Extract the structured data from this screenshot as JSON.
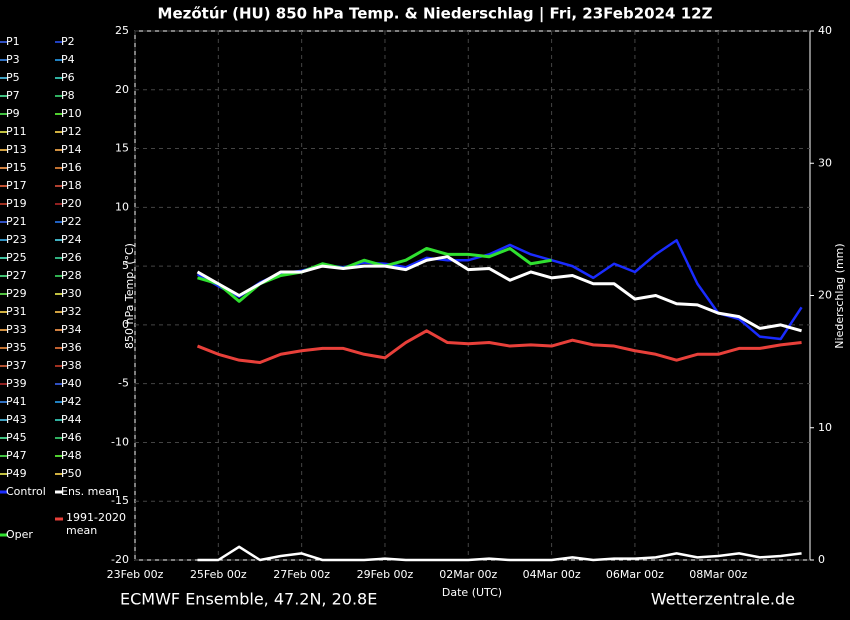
{
  "chart_data": {
    "type": "line",
    "title": "Mezőtúr  (HU)  850 hPa Temp. & Niederschlag | Fri, 23Feb2024 12Z",
    "x_label": "Date (UTC)",
    "y_label": "850 hPa Temp. (°C)",
    "y2_label": "Niederschlag (mm)",
    "footer_left": "ECMWF Ensemble, 47.2N, 20.8E",
    "footer_right": "Wetterzentrale.de",
    "x": [
      "23Feb 00z",
      null,
      null,
      null,
      "25Feb 00z",
      null,
      null,
      null,
      "27Feb 00z",
      null,
      null,
      null,
      "29Feb 00z",
      null,
      null,
      null,
      "02Mar 00z",
      null,
      null,
      null,
      "04Mar 00z",
      null,
      null,
      null,
      "06Mar 00z",
      null,
      null,
      null,
      "08Mar 00z",
      null,
      null,
      null,
      null
    ],
    "ylim": [
      -20,
      25
    ],
    "yticks": [
      -20,
      -15,
      -10,
      -5,
      0,
      5,
      10,
      15,
      20,
      25
    ],
    "y2lim": [
      0,
      40
    ],
    "y2ticks": [
      0,
      10,
      20,
      30,
      40
    ],
    "grid": true,
    "series": [
      {
        "name": "Control",
        "color": "#1a2cff",
        "width": 2.5,
        "values": [
          null,
          null,
          null,
          4.3,
          3.3,
          2.4,
          3.6,
          4.4,
          4.6,
          5.1,
          4.9,
          5.3,
          5.2,
          4.9,
          5.7,
          5.5,
          5.5,
          6,
          6.8,
          6,
          5.5,
          5,
          4,
          5.2,
          4.5,
          6,
          7.2,
          3.5,
          1,
          0.5,
          -1,
          -1.2,
          1.5
        ]
      },
      {
        "name": "1991-2020\nmean",
        "color": "#e8403a",
        "width": 3,
        "values": [
          null,
          null,
          null,
          -1.8,
          -2.5,
          -3,
          -3.2,
          -2.5,
          -2.2,
          -2,
          -2,
          -2.5,
          -2.8,
          -1.5,
          -0.5,
          -1.5,
          -1.6,
          -1.5,
          -1.8,
          -1.7,
          -1.8,
          -1.3,
          -1.7,
          -1.8,
          -2.2,
          -2.5,
          -3,
          -2.5,
          -2.5,
          -2,
          -2,
          -1.7,
          -1.5
        ]
      },
      {
        "name": "Oper",
        "color": "#30e030",
        "width": 3,
        "values": [
          null,
          null,
          null,
          4,
          3.5,
          2,
          3.5,
          4.2,
          4.5,
          5.2,
          4.8,
          5.5,
          5,
          5.5,
          6.5,
          6,
          6,
          5.8,
          6.5,
          5.2,
          5.5,
          null,
          null,
          null,
          null,
          null,
          null,
          null,
          null,
          null,
          null,
          null,
          null
        ]
      },
      {
        "name": "Ens. mean",
        "color": "#ffffff",
        "width": 3,
        "values": [
          null,
          null,
          null,
          4.5,
          3.5,
          2.5,
          3.5,
          4.5,
          4.5,
          5,
          4.8,
          5,
          5,
          4.7,
          5.5,
          5.8,
          4.7,
          4.8,
          3.8,
          4.5,
          4,
          4.2,
          3.5,
          3.5,
          2.2,
          2.5,
          1.8,
          1.7,
          1,
          0.7,
          -0.3,
          0,
          -0.5
        ]
      },
      {
        "name": "Ens. mean",
        "color": "#ffffff",
        "width": 2.5,
        "axis": "y2",
        "values": [
          null,
          null,
          null,
          0,
          0,
          1,
          0,
          0.3,
          0.5,
          0,
          0,
          0,
          0.1,
          0,
          0,
          0,
          0,
          0.1,
          0,
          0,
          0,
          0.2,
          0,
          0.1,
          0.1,
          0.2,
          0.5,
          0.2,
          0.3,
          0.5,
          0.2,
          0.3,
          0.5
        ]
      }
    ],
    "members": [
      {
        "name": "P1",
        "color": "#3050c0"
      },
      {
        "name": "P2",
        "color": "#2040c0"
      },
      {
        "name": "P3",
        "color": "#3070c0"
      },
      {
        "name": "P4",
        "color": "#2080c0"
      },
      {
        "name": "P5",
        "color": "#40a0c0"
      },
      {
        "name": "P6",
        "color": "#30b0a0"
      },
      {
        "name": "P7",
        "color": "#40c080"
      },
      {
        "name": "P8",
        "color": "#30b060"
      },
      {
        "name": "P9",
        "color": "#40c040"
      },
      {
        "name": "P10",
        "color": "#50d030"
      },
      {
        "name": "P11",
        "color": "#c0c040"
      },
      {
        "name": "P12",
        "color": "#d0b040"
      },
      {
        "name": "P13",
        "color": "#d0a040"
      },
      {
        "name": "P14",
        "color": "#d09040"
      },
      {
        "name": "P15",
        "color": "#d08040"
      },
      {
        "name": "P16",
        "color": "#c07030"
      },
      {
        "name": "P17",
        "color": "#c05030"
      },
      {
        "name": "P18",
        "color": "#b04030"
      },
      {
        "name": "P19",
        "color": "#a03020"
      },
      {
        "name": "P20",
        "color": "#902020"
      },
      {
        "name": "P21",
        "color": "#3050c0"
      },
      {
        "name": "P22",
        "color": "#2060c0"
      },
      {
        "name": "P23",
        "color": "#3090c0"
      },
      {
        "name": "P24",
        "color": "#40b0c0"
      },
      {
        "name": "P25",
        "color": "#40c0a0"
      },
      {
        "name": "P26",
        "color": "#30b080"
      },
      {
        "name": "P27",
        "color": "#40c070"
      },
      {
        "name": "P28",
        "color": "#30b050"
      },
      {
        "name": "P29",
        "color": "#50c040"
      },
      {
        "name": "P30",
        "color": "#c0c040"
      },
      {
        "name": "P31",
        "color": "#d0b040"
      },
      {
        "name": "P32",
        "color": "#d0a040"
      },
      {
        "name": "P33",
        "color": "#d09040"
      },
      {
        "name": "P34",
        "color": "#d08040"
      },
      {
        "name": "P35",
        "color": "#c07030"
      },
      {
        "name": "P36",
        "color": "#c06030"
      },
      {
        "name": "P37",
        "color": "#b05030"
      },
      {
        "name": "P38",
        "color": "#a03020"
      },
      {
        "name": "P39",
        "color": "#902020"
      },
      {
        "name": "P40",
        "color": "#3050c0"
      },
      {
        "name": "P41",
        "color": "#3070c0"
      },
      {
        "name": "P42",
        "color": "#2080c0"
      },
      {
        "name": "P43",
        "color": "#40a0c0"
      },
      {
        "name": "P44",
        "color": "#30b0a0"
      },
      {
        "name": "P45",
        "color": "#40c080"
      },
      {
        "name": "P46",
        "color": "#30b060"
      },
      {
        "name": "P47",
        "color": "#40c040"
      },
      {
        "name": "P48",
        "color": "#50d030"
      },
      {
        "name": "P49",
        "color": "#c0c040"
      },
      {
        "name": "P50",
        "color": "#d0b040"
      }
    ]
  }
}
